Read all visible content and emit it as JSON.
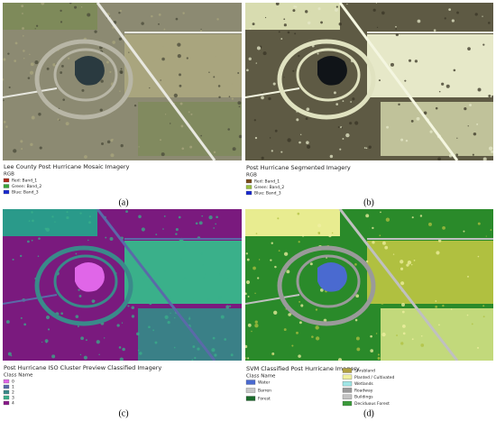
{
  "panels": [
    {
      "label": "(a)",
      "title": "Lee County Post Hurricane Mosaic Imagery",
      "legend_title": "RGB",
      "legend": [
        {
          "label": "Red:  Band_1",
          "color": "#b02a1a"
        },
        {
          "label": "Green: Band_2",
          "color": "#3aa53a"
        },
        {
          "label": "Blue:  Band_3",
          "color": "#1a2ad0"
        }
      ]
    },
    {
      "label": "(b)",
      "title": "Post Hurricane Segmented Imagery",
      "legend_title": "RGB",
      "legend": [
        {
          "label": "Red:  Band_1",
          "color": "#7a4a1a"
        },
        {
          "label": "Green: Band_2",
          "color": "#9ac040"
        },
        {
          "label": "Blue:  Band_3",
          "color": "#1a2ad0"
        }
      ]
    },
    {
      "label": "(c)",
      "title": "Post Hurricane ISO Cluster Preview Classified Imagery",
      "legend_title": "Class Name",
      "legend": [
        {
          "label": "0",
          "color": "#e066e8"
        },
        {
          "label": "1",
          "color": "#5a6aa8"
        },
        {
          "label": "2",
          "color": "#3a8a8a"
        },
        {
          "label": "3",
          "color": "#3ab08a"
        },
        {
          "label": "4",
          "color": "#8a1a8a"
        }
      ]
    },
    {
      "label": "(d)",
      "title": "SVM Classified Post Hurricane Imagery",
      "legend_title": "Class Name",
      "legend": [
        {
          "label": "Water",
          "color": "#4a6ad0"
        },
        {
          "label": "Barren",
          "color": "#c8c8c8"
        },
        {
          "label": "Forest",
          "color": "#1a6a2a"
        },
        {
          "label": "Shrubland",
          "color": "#b0a040"
        },
        {
          "label": "Planted / Cultivated",
          "color": "#f0f0a0"
        },
        {
          "label": "Wetlands",
          "color": "#a0e6e6"
        },
        {
          "label": "Roadway",
          "color": "#9a9a9a"
        },
        {
          "label": "Buildings",
          "color": "#c4c4c4"
        },
        {
          "label": "Deciduous Forest",
          "color": "#3a9a3a"
        }
      ]
    }
  ]
}
